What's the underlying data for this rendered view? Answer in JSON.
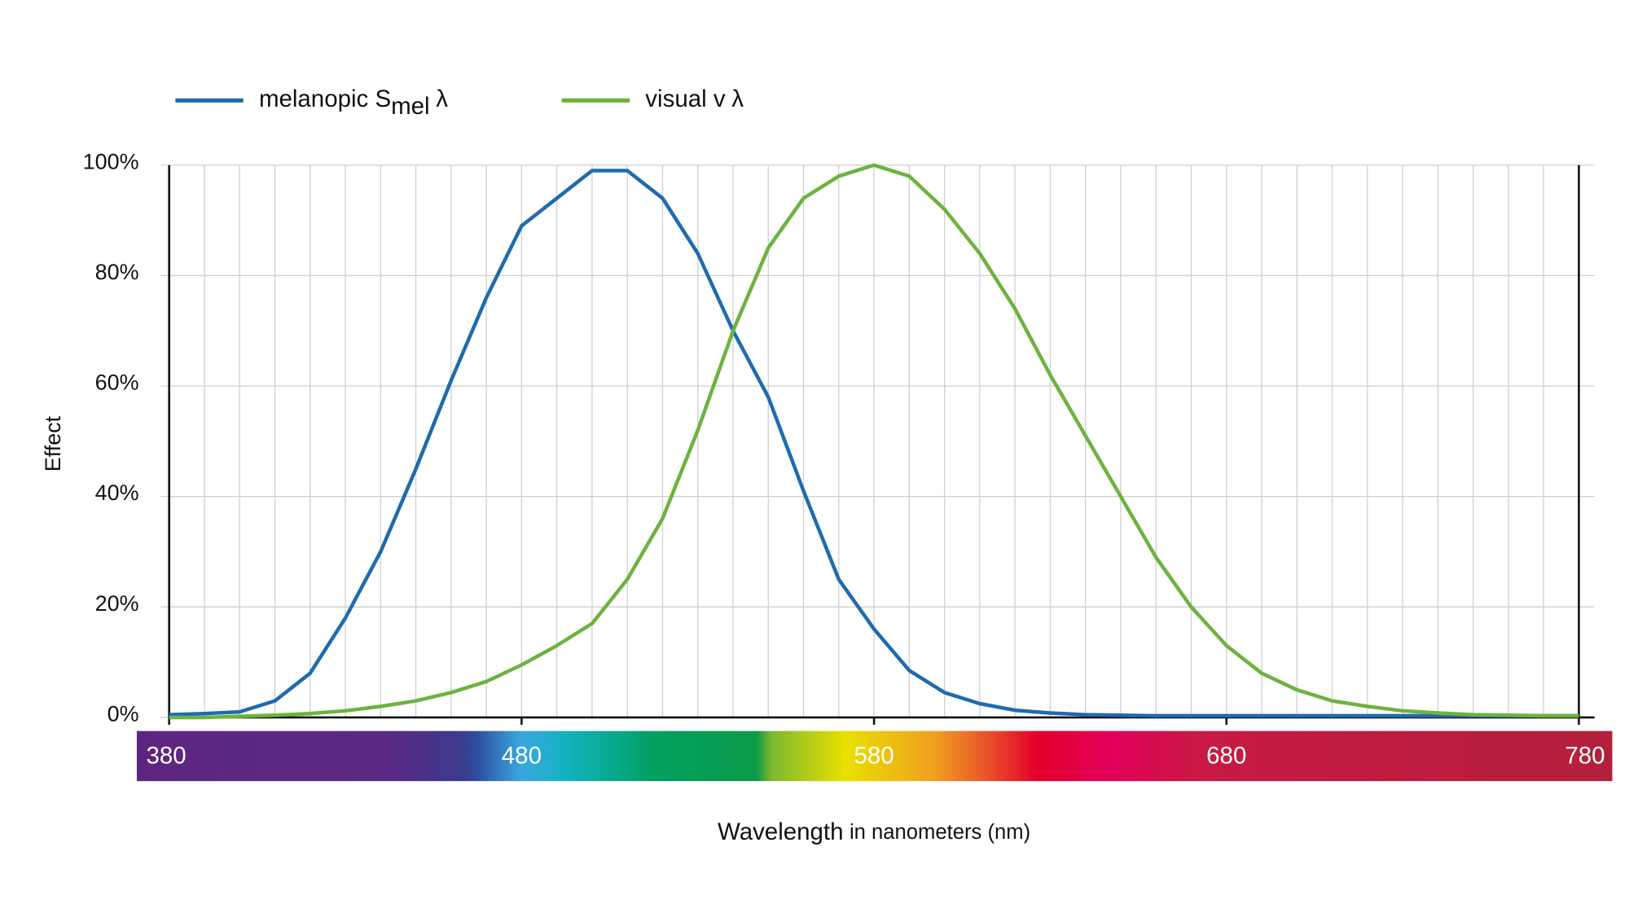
{
  "chart_data": {
    "type": "line",
    "series": [
      {
        "name": "melanopic S",
        "name_sub": "mel",
        "name_end": "λ",
        "color": "#1f6bad",
        "values": [
          0.5,
          0.7,
          1,
          3,
          8,
          18,
          30,
          45,
          61,
          76,
          89,
          94,
          99,
          99,
          94,
          84,
          70,
          58,
          41,
          25,
          16,
          8.5,
          4.5,
          2.5,
          1.3,
          0.8,
          0.5,
          0.4,
          0.3,
          0.3,
          0.3,
          0.3,
          0.3,
          0.3,
          0.3,
          0.3,
          0.3,
          0.3,
          0.3,
          0.3,
          0.3
        ]
      },
      {
        "name": "visual v",
        "name_end": "λ",
        "color": "#6cb33f",
        "values": [
          0,
          0,
          0.2,
          0.4,
          0.7,
          1.2,
          2,
          3,
          4.5,
          6.5,
          9.5,
          13,
          17,
          25,
          36,
          52,
          70,
          85,
          94,
          98,
          100,
          98,
          92,
          84,
          74,
          62,
          51,
          40,
          29,
          20,
          13,
          8,
          5,
          3,
          2,
          1.2,
          0.8,
          0.5,
          0.4,
          0.3,
          0.3
        ]
      }
    ],
    "x": [
      380,
      390,
      400,
      410,
      420,
      430,
      440,
      450,
      460,
      470,
      480,
      490,
      500,
      510,
      520,
      530,
      540,
      550,
      560,
      570,
      580,
      590,
      600,
      610,
      620,
      630,
      640,
      650,
      660,
      670,
      680,
      690,
      700,
      710,
      720,
      730,
      740,
      750,
      760,
      770,
      780
    ],
    "xlim": [
      380,
      780
    ],
    "xticks": [
      380,
      480,
      580,
      680,
      780
    ],
    "ylim": [
      0,
      100
    ],
    "yticks": [
      {
        "value": 0,
        "label": "0%"
      },
      {
        "value": 20,
        "label": "20%"
      },
      {
        "value": 40,
        "label": "40%"
      },
      {
        "value": 60,
        "label": "60%"
      },
      {
        "value": 80,
        "label": "80%"
      },
      {
        "value": 100,
        "label": "100%"
      }
    ],
    "y_label": "Effect",
    "x_label": "Wavelength",
    "x_label_note": "in nanometers (nm)",
    "grid": true
  }
}
